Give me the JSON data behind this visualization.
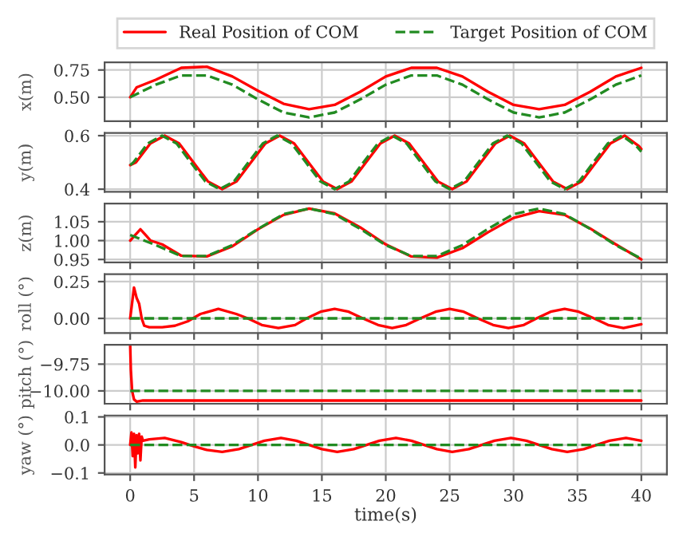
{
  "chart_data": [
    {
      "type": "line",
      "ylabel": "x(m)",
      "legend": "top",
      "grid": true,
      "tick_labels": "y",
      "xlim": [
        -2,
        42
      ],
      "xticks": [
        0,
        5,
        10,
        15,
        20,
        25,
        30,
        35,
        40
      ],
      "ylim": [
        0.28,
        0.82
      ],
      "yticks": [
        {
          "value": 0.5,
          "label": "0.50"
        },
        {
          "value": 0.75,
          "label": "0.75"
        }
      ],
      "series": [
        {
          "name": "Real Position of COM",
          "color": "#ff0000",
          "line_style": "solid",
          "x": [
            0,
            0.5,
            2,
            4,
            6,
            8,
            10,
            12,
            14,
            16,
            18,
            20,
            22,
            24,
            26,
            28,
            30,
            32,
            34,
            36,
            38,
            40
          ],
          "values": [
            0.5,
            0.59,
            0.66,
            0.77,
            0.78,
            0.69,
            0.56,
            0.44,
            0.39,
            0.43,
            0.55,
            0.69,
            0.77,
            0.77,
            0.69,
            0.55,
            0.43,
            0.39,
            0.43,
            0.55,
            0.69,
            0.77
          ]
        },
        {
          "name": "Target Position of COM",
          "color": "#228b22",
          "line_style": "dashed",
          "x": [
            0,
            2,
            4,
            6,
            8,
            10,
            12,
            14,
            16,
            18,
            20,
            22,
            24,
            26,
            28,
            30,
            32,
            34,
            36,
            38,
            40
          ],
          "values": [
            0.5,
            0.615,
            0.7,
            0.7,
            0.615,
            0.48,
            0.36,
            0.315,
            0.36,
            0.48,
            0.615,
            0.7,
            0.7,
            0.615,
            0.48,
            0.36,
            0.315,
            0.36,
            0.48,
            0.615,
            0.7
          ]
        }
      ]
    },
    {
      "type": "line",
      "ylabel": "y(m)",
      "grid": true,
      "tick_labels": "y",
      "xlim": [
        -2,
        42
      ],
      "xticks": [
        0,
        5,
        10,
        15,
        20,
        25,
        30,
        35,
        40
      ],
      "ylim": [
        0.39,
        0.61
      ],
      "yticks": [
        0.4,
        0.6
      ],
      "series": [
        {
          "color": "#ff0000",
          "line_style": "solid",
          "x": [
            0,
            0.45,
            1.58,
            2.7,
            3.83,
            4.95,
            6.08,
            7.2,
            8.33,
            9.45,
            10.58,
            11.7,
            12.83,
            13.95,
            15.08,
            16.2,
            17.33,
            18.45,
            19.58,
            20.7,
            21.83,
            22.95,
            24.08,
            25.2,
            26.33,
            27.45,
            28.58,
            29.7,
            30.83,
            31.95,
            33.08,
            34.2,
            35.33,
            36.45,
            37.58,
            38.7,
            39.83,
            40
          ],
          "values": [
            0.49,
            0.5,
            0.571,
            0.6,
            0.571,
            0.5,
            0.429,
            0.4,
            0.429,
            0.5,
            0.571,
            0.6,
            0.571,
            0.5,
            0.429,
            0.4,
            0.429,
            0.5,
            0.571,
            0.6,
            0.571,
            0.5,
            0.429,
            0.4,
            0.429,
            0.5,
            0.571,
            0.6,
            0.571,
            0.5,
            0.429,
            0.4,
            0.429,
            0.5,
            0.571,
            0.6,
            0.56,
            0.55
          ]
        },
        {
          "color": "#228b22",
          "line_style": "dashed",
          "x": [
            0,
            0.25,
            1.38,
            2.5,
            3.63,
            4.75,
            5.88,
            7,
            8.13,
            9.25,
            10.38,
            11.5,
            12.63,
            13.75,
            14.88,
            16,
            17.13,
            18.25,
            19.38,
            20.5,
            21.63,
            22.75,
            23.88,
            25,
            26.13,
            27.25,
            28.38,
            29.5,
            30.63,
            31.75,
            32.88,
            34,
            35.13,
            36.25,
            37.38,
            38.5,
            39.63,
            40
          ],
          "values": [
            0.49,
            0.5,
            0.571,
            0.6,
            0.571,
            0.5,
            0.429,
            0.4,
            0.429,
            0.5,
            0.571,
            0.6,
            0.571,
            0.5,
            0.429,
            0.4,
            0.429,
            0.5,
            0.571,
            0.6,
            0.571,
            0.5,
            0.429,
            0.4,
            0.429,
            0.5,
            0.571,
            0.6,
            0.571,
            0.5,
            0.429,
            0.4,
            0.429,
            0.5,
            0.571,
            0.6,
            0.56,
            0.54
          ]
        }
      ]
    },
    {
      "type": "line",
      "ylabel": "z(m)",
      "grid": true,
      "tick_labels": "y",
      "xlim": [
        -2,
        42
      ],
      "xticks": [
        0,
        5,
        10,
        15,
        20,
        25,
        30,
        35,
        40
      ],
      "ylim": [
        0.942,
        1.098
      ],
      "yticks": [
        {
          "value": 0.95,
          "label": "0.95"
        },
        {
          "value": 1.0,
          "label": "1.00"
        },
        {
          "value": 1.05,
          "label": "1.05"
        }
      ],
      "series": [
        {
          "color": "#ff0000",
          "line_style": "solid",
          "x": [
            0,
            0.4,
            0.8,
            1.2,
            1.6,
            2.5,
            4,
            6,
            8,
            10,
            12,
            14,
            16,
            18,
            20,
            22,
            24,
            26,
            28,
            30,
            32,
            34,
            36,
            38,
            40
          ],
          "values": [
            1.0,
            1.015,
            1.03,
            1.015,
            1.0,
            0.99,
            0.96,
            0.958,
            0.985,
            1.03,
            1.068,
            1.085,
            1.072,
            1.035,
            0.99,
            0.958,
            0.955,
            0.98,
            1.022,
            1.06,
            1.078,
            1.068,
            1.032,
            0.99,
            0.95
          ]
        },
        {
          "color": "#228b22",
          "line_style": "dashed",
          "x": [
            0,
            2,
            4,
            6,
            8,
            10,
            12,
            14,
            16,
            18,
            20,
            22,
            24,
            26,
            28,
            30,
            32,
            34,
            36,
            38,
            40
          ],
          "values": [
            1.015,
            0.988,
            0.959,
            0.959,
            0.988,
            1.031,
            1.07,
            1.085,
            1.07,
            1.031,
            0.988,
            0.959,
            0.959,
            0.988,
            1.031,
            1.07,
            1.085,
            1.07,
            1.031,
            0.988,
            0.952
          ]
        }
      ]
    },
    {
      "type": "line",
      "ylabel": "roll (°)",
      "grid": true,
      "tick_labels": "y",
      "xlim": [
        -2,
        42
      ],
      "xticks": [
        0,
        5,
        10,
        15,
        20,
        25,
        30,
        35,
        40
      ],
      "ylim": [
        -0.1,
        0.3
      ],
      "yticks": [
        {
          "value": 0,
          "label": "0.00"
        },
        {
          "value": 0.25,
          "label": "0.25"
        }
      ],
      "series": [
        {
          "color": "#ff0000",
          "line_style": "solid",
          "x": [
            0,
            0.3,
            0.5,
            0.7,
            0.9,
            1.1,
            1.5,
            2.5,
            3.5,
            4.5,
            5.5,
            6.9,
            8.3,
            9.2,
            10.3,
            11.6,
            12.9,
            13.8,
            14.9,
            16,
            17.1,
            18.2,
            19.4,
            20.5,
            21.6,
            22.7,
            23.9,
            25,
            26.1,
            27.2,
            28.4,
            29.6,
            30.8,
            31.8,
            32.9,
            34,
            35.1,
            36.3,
            37.4,
            38.6,
            40
          ],
          "values": [
            0,
            0.21,
            0.14,
            0.1,
            0.0,
            -0.05,
            -0.06,
            -0.06,
            -0.05,
            -0.02,
            0.03,
            0.065,
            0.03,
            0,
            -0.045,
            -0.065,
            -0.045,
            0,
            0.045,
            0.065,
            0.045,
            0,
            -0.045,
            -0.065,
            -0.045,
            0,
            0.045,
            0.065,
            0.045,
            0,
            -0.045,
            -0.065,
            -0.045,
            0,
            0.045,
            0.065,
            0.045,
            0,
            -0.045,
            -0.065,
            -0.04
          ]
        },
        {
          "color": "#228b22",
          "line_style": "dashed",
          "x": [
            0,
            40
          ],
          "values": [
            0,
            0
          ]
        }
      ]
    },
    {
      "type": "line",
      "ylabel": "pitch (°)",
      "grid": true,
      "tick_labels": "y",
      "xlim": [
        -2,
        42
      ],
      "xticks": [
        0,
        5,
        10,
        15,
        20,
        25,
        30,
        35,
        40
      ],
      "ylim": [
        -10.12,
        -9.57
      ],
      "yticks": [
        {
          "value": -10.0,
          "label": "−10.00"
        },
        {
          "value": -9.75,
          "label": "−9.75"
        }
      ],
      "series": [
        {
          "color": "#ff0000",
          "line_style": "solid",
          "x": [
            0,
            0.05,
            0.15,
            0.3,
            0.5,
            1,
            40
          ],
          "values": [
            -9.57,
            -9.8,
            -10.0,
            -10.08,
            -10.1,
            -10.09,
            -10.09
          ]
        },
        {
          "color": "#228b22",
          "line_style": "dashed",
          "x": [
            0,
            40
          ],
          "values": [
            -10.0,
            -10.0
          ]
        }
      ]
    },
    {
      "type": "line",
      "ylabel": "yaw (°)",
      "xlabel": "time(s)",
      "grid": true,
      "xlim": [
        -2,
        42
      ],
      "xticks": [
        0,
        5,
        10,
        15,
        20,
        25,
        30,
        35,
        40
      ],
      "ylim": [
        -0.105,
        0.105
      ],
      "yticks": [
        {
          "value": -0.1,
          "label": "−0.1"
        },
        {
          "value": 0,
          "label": "0.0"
        },
        {
          "value": 0.1,
          "label": "0.1"
        }
      ],
      "series": [
        {
          "color": "#ff0000",
          "line_style": "solid",
          "x": [
            0,
            0.1,
            0.2,
            0.3,
            0.4,
            0.5,
            0.6,
            0.7,
            0.8,
            0.9,
            1.0,
            1.5,
            2.7,
            4,
            5,
            6,
            7.2,
            8.5,
            9.5,
            10.5,
            11.8,
            13,
            14,
            15,
            16.2,
            17.5,
            18.5,
            19.5,
            20.8,
            22,
            23,
            24,
            25.2,
            26.5,
            27.5,
            28.5,
            29.8,
            31,
            32,
            33,
            34.2,
            35.5,
            36.5,
            37.5,
            38.8,
            40
          ],
          "values": [
            0,
            0.045,
            -0.04,
            0.04,
            -0.08,
            0.035,
            -0.03,
            0.04,
            -0.055,
            0.03,
            0.015,
            0.02,
            0.025,
            0.01,
            -0.005,
            -0.018,
            -0.025,
            -0.015,
            0,
            0.015,
            0.025,
            0.015,
            0,
            -0.015,
            -0.025,
            -0.015,
            0,
            0.015,
            0.025,
            0.015,
            0,
            -0.015,
            -0.025,
            -0.015,
            0,
            0.015,
            0.025,
            0.015,
            0,
            -0.015,
            -0.025,
            -0.015,
            0,
            0.015,
            0.025,
            0.015
          ]
        },
        {
          "color": "#228b22",
          "line_style": "dashed",
          "x": [
            0,
            40
          ],
          "values": [
            0,
            0
          ]
        }
      ]
    }
  ]
}
